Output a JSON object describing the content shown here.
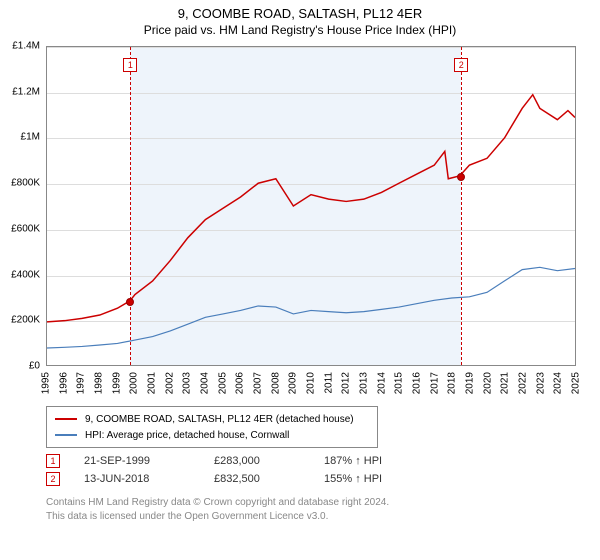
{
  "title": {
    "main": "9, COOMBE ROAD, SALTASH, PL12 4ER",
    "sub": "Price paid vs. HM Land Registry's House Price Index (HPI)",
    "fontsize_main": 13,
    "fontsize_sub": 12
  },
  "chart": {
    "type": "line",
    "background_color": "#ffffff",
    "border_color": "#888888",
    "grid_color": "#dddddd",
    "x": {
      "min": 1995,
      "max": 2025,
      "ticks": [
        1995,
        1996,
        1997,
        1998,
        1999,
        2000,
        2001,
        2002,
        2003,
        2004,
        2005,
        2006,
        2007,
        2008,
        2009,
        2010,
        2011,
        2012,
        2013,
        2014,
        2015,
        2016,
        2017,
        2018,
        2019,
        2020,
        2021,
        2022,
        2023,
        2024,
        2025
      ],
      "label_fontsize": 10,
      "rotate_deg": -90
    },
    "y": {
      "min": 0,
      "max": 1400000,
      "ticks": [
        0,
        200000,
        400000,
        600000,
        800000,
        1000000,
        1200000,
        1400000
      ],
      "tick_labels": [
        "£0",
        "£200K",
        "£400K",
        "£600K",
        "£800K",
        "£1M",
        "£1.2M",
        "£1.4M"
      ],
      "label_fontsize": 10
    },
    "band": {
      "from_year": 1999.72,
      "to_year": 2018.45,
      "color": "#eef4fb"
    },
    "vlines": [
      {
        "id": "1",
        "year": 1999.72,
        "color": "#cc0000",
        "dash": "dashed"
      },
      {
        "id": "2",
        "year": 2018.45,
        "color": "#cc0000",
        "dash": "dashed"
      }
    ],
    "series": [
      {
        "name": "9, COOMBE ROAD, SALTASH, PL12 4ER (detached house)",
        "color": "#cc0000",
        "line_width": 1.5,
        "points": [
          [
            1995,
            190000
          ],
          [
            1996,
            195000
          ],
          [
            1997,
            205000
          ],
          [
            1998,
            220000
          ],
          [
            1999,
            250000
          ],
          [
            1999.72,
            283000
          ],
          [
            2000,
            310000
          ],
          [
            2001,
            370000
          ],
          [
            2002,
            460000
          ],
          [
            2003,
            560000
          ],
          [
            2004,
            640000
          ],
          [
            2005,
            690000
          ],
          [
            2006,
            740000
          ],
          [
            2007,
            800000
          ],
          [
            2008,
            820000
          ],
          [
            2009,
            700000
          ],
          [
            2010,
            750000
          ],
          [
            2011,
            730000
          ],
          [
            2012,
            720000
          ],
          [
            2013,
            730000
          ],
          [
            2014,
            760000
          ],
          [
            2015,
            800000
          ],
          [
            2016,
            840000
          ],
          [
            2017,
            880000
          ],
          [
            2017.6,
            940000
          ],
          [
            2017.8,
            820000
          ],
          [
            2018.45,
            832500
          ],
          [
            2019,
            880000
          ],
          [
            2020,
            910000
          ],
          [
            2021,
            1000000
          ],
          [
            2022,
            1130000
          ],
          [
            2022.6,
            1190000
          ],
          [
            2023,
            1130000
          ],
          [
            2024,
            1080000
          ],
          [
            2024.6,
            1120000
          ],
          [
            2025,
            1090000
          ]
        ]
      },
      {
        "name": "HPI: Average price, detached house, Cornwall",
        "color": "#4a7ebb",
        "line_width": 1.2,
        "points": [
          [
            1995,
            75000
          ],
          [
            1996,
            78000
          ],
          [
            1997,
            82000
          ],
          [
            1998,
            88000
          ],
          [
            1999,
            95000
          ],
          [
            2000,
            110000
          ],
          [
            2001,
            125000
          ],
          [
            2002,
            150000
          ],
          [
            2003,
            180000
          ],
          [
            2004,
            210000
          ],
          [
            2005,
            225000
          ],
          [
            2006,
            240000
          ],
          [
            2007,
            260000
          ],
          [
            2008,
            255000
          ],
          [
            2009,
            225000
          ],
          [
            2010,
            240000
          ],
          [
            2011,
            235000
          ],
          [
            2012,
            230000
          ],
          [
            2013,
            235000
          ],
          [
            2014,
            245000
          ],
          [
            2015,
            255000
          ],
          [
            2016,
            270000
          ],
          [
            2017,
            285000
          ],
          [
            2018,
            295000
          ],
          [
            2019,
            300000
          ],
          [
            2020,
            320000
          ],
          [
            2021,
            370000
          ],
          [
            2022,
            420000
          ],
          [
            2023,
            430000
          ],
          [
            2024,
            415000
          ],
          [
            2025,
            425000
          ]
        ]
      }
    ],
    "markers": [
      {
        "id": "1",
        "year": 1999.72,
        "value": 283000,
        "color": "#cc0000",
        "label_y": 1320000
      },
      {
        "id": "2",
        "year": 2018.45,
        "value": 832500,
        "color": "#cc0000",
        "label_y": 1320000
      }
    ]
  },
  "legend": {
    "border_color": "#888888",
    "items": [
      {
        "color": "#cc0000",
        "label": "9, COOMBE ROAD, SALTASH, PL12 4ER (detached house)"
      },
      {
        "color": "#4a7ebb",
        "label": "HPI: Average price, detached house, Cornwall"
      }
    ]
  },
  "sales": [
    {
      "id": "1",
      "date": "21-SEP-1999",
      "price": "£283,000",
      "pct": "187% ↑ HPI"
    },
    {
      "id": "2",
      "date": "13-JUN-2018",
      "price": "£832,500",
      "pct": "155% ↑ HPI"
    }
  ],
  "footer": {
    "line1": "Contains HM Land Registry data © Crown copyright and database right 2024.",
    "line2": "This data is licensed under the Open Government Licence v3.0."
  }
}
